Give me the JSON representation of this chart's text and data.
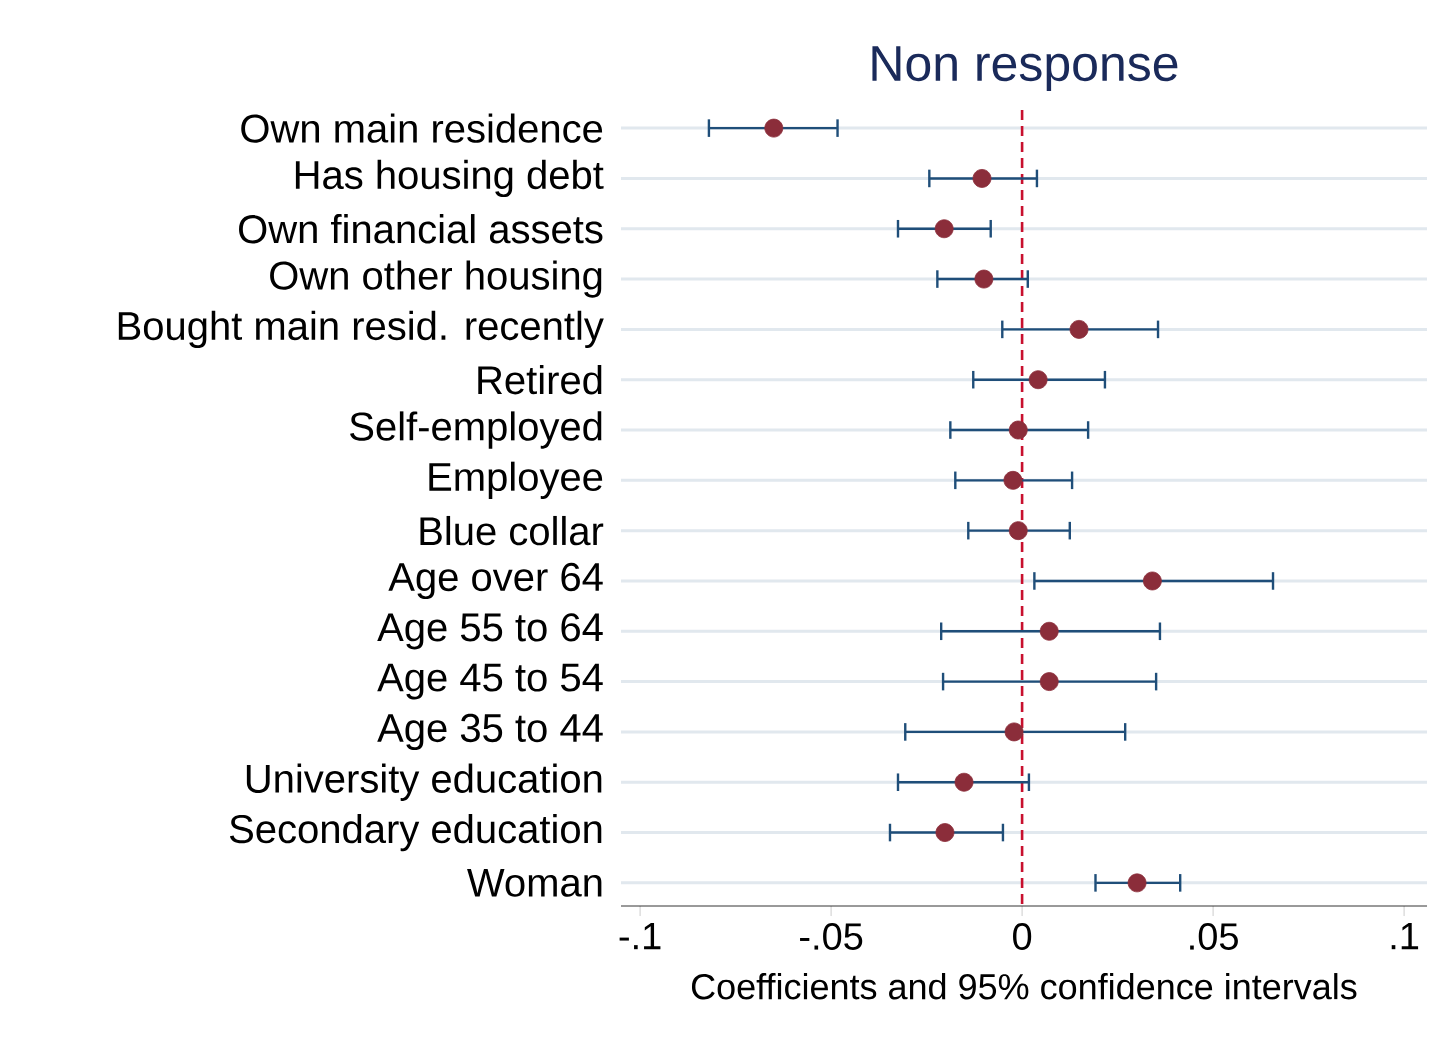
{
  "chart_data": {
    "type": "scatter",
    "orientation": "horizontal",
    "title": "Non response",
    "xlabel": "Coefficients and 95% confidence intervals",
    "categories": [
      "Own main residence",
      "Has housing debt",
      "Own financial assets",
      "Own other housing",
      "Bought main resid. recently",
      "Retired",
      "Self-employed",
      "Employee",
      "Blue collar",
      "Age over 64",
      "Age 55 to 64",
      "Age 45 to 54",
      "Age 35 to 44",
      "University education",
      "Secondary education",
      "Woman"
    ],
    "values": [
      -0.065,
      -0.0105,
      -0.0204,
      -0.01,
      0.0149,
      0.0042,
      -0.001,
      -0.0024,
      -0.001,
      0.0341,
      0.0071,
      0.0071,
      -0.0021,
      -0.0152,
      -0.0202,
      0.0301
    ],
    "errors": [
      [
        -0.0823,
        -0.048
      ],
      [
        -0.0246,
        0.0042
      ],
      [
        -0.0328,
        -0.0079
      ],
      [
        -0.0225,
        0.0018
      ],
      [
        -0.0055,
        0.0359
      ],
      [
        -0.0131,
        0.022
      ],
      [
        -0.0191,
        0.0176
      ],
      [
        -0.0178,
        0.0134
      ],
      [
        -0.0144,
        0.0128
      ],
      [
        0.0029,
        0.066
      ],
      [
        -0.0215,
        0.0364
      ],
      [
        -0.021,
        0.0354
      ],
      [
        -0.0309,
        0.0273
      ],
      [
        -0.0328,
        0.0021
      ],
      [
        -0.0349,
        -0.0047
      ],
      [
        0.0189,
        0.0417
      ]
    ],
    "color": "#8b2d3a",
    "marker": "circle",
    "grid": "y",
    "xlim": [
      -0.105,
      0.106
    ],
    "xticks": [
      {
        "value": -0.1,
        "label": "-.1"
      },
      {
        "value": -0.05,
        "label": "-.05"
      },
      0,
      {
        "value": 0.05,
        "label": ".05"
      },
      {
        "value": 0.1,
        "label": ".1"
      }
    ],
    "ref_lines": [
      {
        "axis": "x",
        "value": 0,
        "color": "#c8102e",
        "line_style": "dashed"
      }
    ]
  }
}
